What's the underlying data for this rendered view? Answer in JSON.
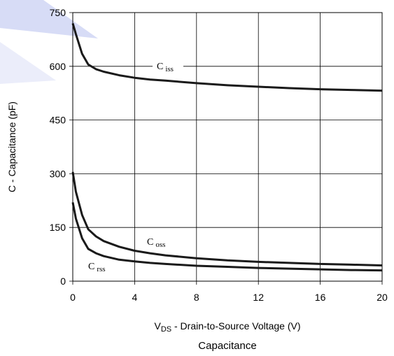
{
  "chart_data": {
    "type": "line",
    "caption": "Capacitance",
    "xlabel": {
      "main": "V",
      "sub": "DS",
      "rest": " - Drain-to-Source Voltage (V)"
    },
    "ylabel": "C - Capacitance (pF)",
    "xlim": [
      0,
      20
    ],
    "ylim": [
      0,
      750
    ],
    "xticks": [
      0,
      4,
      8,
      12,
      16,
      20
    ],
    "yticks": [
      0,
      150,
      300,
      450,
      600,
      750
    ],
    "grid": true,
    "series": [
      {
        "name": "C_iss",
        "label_main": "C",
        "label_sub": "iss",
        "x": [
          0,
          0.2,
          0.6,
          1,
          1.5,
          2,
          3,
          4,
          5,
          6,
          8,
          10,
          12,
          14,
          16,
          18,
          20
        ],
        "y": [
          720,
          690,
          635,
          605,
          592,
          585,
          575,
          568,
          563,
          560,
          553,
          547,
          543,
          539,
          536,
          534,
          532
        ]
      },
      {
        "name": "C_oss",
        "label_main": "C",
        "label_sub": "oss",
        "x": [
          0,
          0.2,
          0.6,
          1,
          1.5,
          2,
          3,
          4,
          5,
          6,
          8,
          10,
          12,
          14,
          16,
          18,
          20
        ],
        "y": [
          305,
          250,
          185,
          145,
          125,
          112,
          96,
          85,
          78,
          72,
          64,
          58,
          54,
          51,
          48,
          46,
          44
        ]
      },
      {
        "name": "C_rss",
        "label_main": "C",
        "label_sub": "rss",
        "x": [
          0,
          0.2,
          0.6,
          1,
          1.5,
          2,
          3,
          4,
          5,
          6,
          8,
          10,
          12,
          14,
          16,
          18,
          20
        ],
        "y": [
          220,
          175,
          120,
          90,
          78,
          70,
          60,
          55,
          51,
          48,
          43,
          40,
          37,
          35,
          33,
          31,
          30
        ]
      }
    ]
  },
  "colors": {
    "line": "#1a1a1a",
    "grid": "#000000",
    "watermark": "#c9cff2"
  }
}
